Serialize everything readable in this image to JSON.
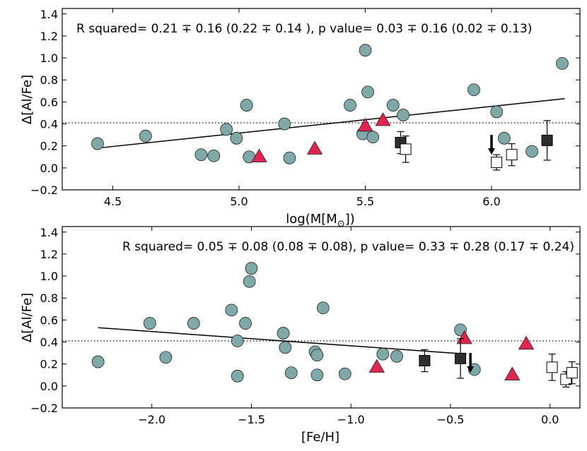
{
  "chart_data": [
    {
      "type": "scatter",
      "panel": "top",
      "annotation": "R squared= 0.21 ∓ 0.16 (0.22 ∓ 0.14 ), p value= 0.03 ∓ 0.16 (0.02 ∓ 0.13)",
      "xlabel": "log(M[M",
      "xlabel_sub": "⊙",
      "xlabel_end": "])",
      "ylabel": "Δ[Al/Fe]",
      "xlim": [
        4.3,
        6.35
      ],
      "ylim": [
        -0.2,
        1.45
      ],
      "xticks": [
        4.5,
        5.0,
        5.5,
        6.0
      ],
      "xtick_labels": [
        "4.5",
        "5.0",
        "5.5",
        "6.0"
      ],
      "yticks": [
        -0.2,
        0.0,
        0.2,
        0.4,
        0.6,
        0.8,
        1.0,
        1.2,
        1.4
      ],
      "ytick_labels": [
        "−0.2",
        "0.0",
        "0.2",
        "0.4",
        "0.6",
        "0.8",
        "1.0",
        "1.2",
        "1.4"
      ],
      "reference_line_y": 0.41,
      "fit_line": [
        [
          4.44,
          0.18
        ],
        [
          6.29,
          0.63
        ]
      ],
      "series": [
        {
          "name": "circles",
          "marker": "circle",
          "color": "#7fa9a8",
          "points": [
            [
              4.44,
              0.22
            ],
            [
              4.63,
              0.29
            ],
            [
              4.85,
              0.12
            ],
            [
              4.9,
              0.11
            ],
            [
              4.95,
              0.35
            ],
            [
              4.99,
              0.27
            ],
            [
              5.03,
              0.57
            ],
            [
              5.04,
              0.1
            ],
            [
              5.18,
              0.4
            ],
            [
              5.2,
              0.09
            ],
            [
              5.44,
              0.57
            ],
            [
              5.49,
              0.31
            ],
            [
              5.5,
              1.07
            ],
            [
              5.51,
              0.69
            ],
            [
              5.53,
              0.28
            ],
            [
              5.61,
              0.57
            ],
            [
              5.65,
              0.48
            ],
            [
              5.93,
              0.71
            ],
            [
              6.02,
              0.51
            ],
            [
              6.05,
              0.27
            ],
            [
              6.16,
              0.15
            ],
            [
              6.28,
              0.95
            ]
          ]
        },
        {
          "name": "triangles",
          "marker": "triangle",
          "color": "#e0254f",
          "points": [
            [
              5.08,
              0.1
            ],
            [
              5.3,
              0.17
            ],
            [
              5.5,
              0.38
            ],
            [
              5.57,
              0.43
            ]
          ]
        },
        {
          "name": "filled squares",
          "marker": "square",
          "color": "#2e2e2e",
          "points": [
            [
              5.64,
              0.23,
              0.1
            ],
            [
              6.22,
              0.25,
              0.18
            ]
          ]
        },
        {
          "name": "open squares",
          "marker": "open-square",
          "color": "#000000",
          "points": [
            [
              5.66,
              0.17,
              0.12
            ],
            [
              6.02,
              0.05,
              0.07
            ],
            [
              6.08,
              0.12,
              0.1
            ]
          ]
        },
        {
          "name": "upper limit",
          "marker": "arrow",
          "color": "#000000",
          "points": [
            [
              6.0,
              0.3,
              -0.18
            ]
          ]
        }
      ]
    },
    {
      "type": "scatter",
      "panel": "bottom",
      "annotation": "R squared= 0.05 ∓ 0.08 (0.08 ∓ 0.08), p value= 0.33 ∓ 0.28 (0.17 ∓ 0.24)",
      "xlabel": "[Fe/H]",
      "ylabel": "Δ[Al/Fe]",
      "xlim": [
        -2.45,
        0.15
      ],
      "ylim": [
        -0.2,
        1.45
      ],
      "xticks": [
        -2.0,
        -1.5,
        -1.0,
        -0.5,
        0.0
      ],
      "xtick_labels": [
        "−2.0",
        "−1.5",
        "−1.0",
        "−0.5",
        "0.0"
      ],
      "yticks": [
        -0.2,
        0.0,
        0.2,
        0.4,
        0.6,
        0.8,
        1.0,
        1.2,
        1.4
      ],
      "ytick_labels": [
        "−0.2",
        "0.0",
        "0.2",
        "0.4",
        "0.6",
        "0.8",
        "1.0",
        "1.2",
        "1.4"
      ],
      "reference_line_y": 0.41,
      "fit_line": [
        [
          -2.27,
          0.53
        ],
        [
          -0.42,
          0.29
        ]
      ],
      "series": [
        {
          "name": "circles",
          "marker": "circle",
          "color": "#7fa9a8",
          "points": [
            [
              -2.27,
              0.22
            ],
            [
              -2.01,
              0.57
            ],
            [
              -1.93,
              0.26
            ],
            [
              -1.79,
              0.57
            ],
            [
              -1.6,
              0.69
            ],
            [
              -1.57,
              0.41
            ],
            [
              -1.57,
              0.09
            ],
            [
              -1.53,
              0.57
            ],
            [
              -1.51,
              0.95
            ],
            [
              -1.5,
              1.07
            ],
            [
              -1.34,
              0.48
            ],
            [
              -1.33,
              0.35
            ],
            [
              -1.3,
              0.12
            ],
            [
              -1.18,
              0.31
            ],
            [
              -1.17,
              0.28
            ],
            [
              -1.17,
              0.1
            ],
            [
              -1.14,
              0.71
            ],
            [
              -1.03,
              0.11
            ],
            [
              -0.84,
              0.29
            ],
            [
              -0.77,
              0.27
            ],
            [
              -0.45,
              0.51
            ],
            [
              -0.38,
              0.15
            ]
          ]
        },
        {
          "name": "triangles",
          "marker": "triangle",
          "color": "#e0254f",
          "points": [
            [
              -0.87,
              0.17
            ],
            [
              -0.43,
              0.43
            ],
            [
              -0.19,
              0.1
            ],
            [
              -0.12,
              0.38
            ]
          ]
        },
        {
          "name": "filled squares",
          "marker": "square",
          "color": "#2e2e2e",
          "points": [
            [
              -0.63,
              0.23,
              0.1
            ],
            [
              -0.45,
              0.25,
              0.18
            ]
          ]
        },
        {
          "name": "open squares",
          "marker": "open-square",
          "color": "#000000",
          "points": [
            [
              0.01,
              0.17,
              0.12
            ],
            [
              0.08,
              0.06,
              0.07
            ],
            [
              0.11,
              0.12,
              0.1
            ]
          ]
        },
        {
          "name": "upper limit",
          "marker": "arrow",
          "color": "#000000",
          "points": [
            [
              -0.4,
              0.3,
              -0.18
            ]
          ]
        }
      ]
    }
  ]
}
